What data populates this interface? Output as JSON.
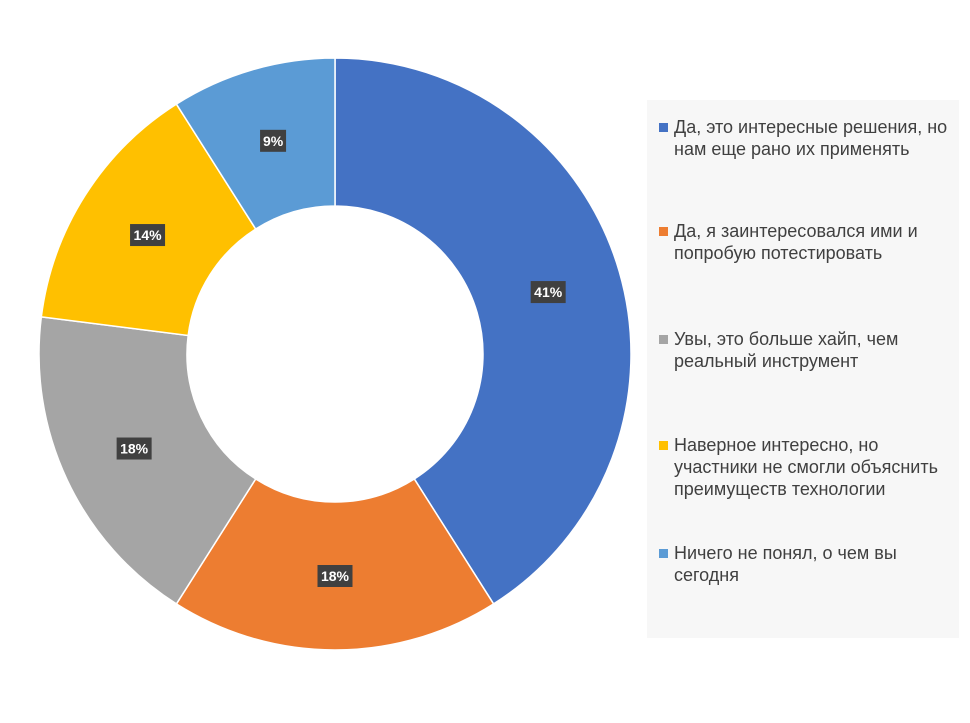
{
  "chart_data": {
    "type": "donut",
    "categories": [
      "Да, это интересные решения, но нам еще рано их применять",
      "Да, я заинтересовался ими и попробую потестировать",
      "Увы, это больше хайп, чем реальный инструмент",
      "Наверное интересно, но участники не смогли объяснить преимуществ технологии",
      "Ничего не понял, о чем вы сегодня"
    ],
    "values": [
      41,
      18,
      18,
      14,
      9
    ],
    "data_labels": [
      "41%",
      "18%",
      "18%",
      "14%",
      "9%"
    ],
    "colors": [
      "#4472C4",
      "#ED7D31",
      "#A5A5A5",
      "#FFC000",
      "#5B9BD5"
    ],
    "legend_position": "right"
  }
}
